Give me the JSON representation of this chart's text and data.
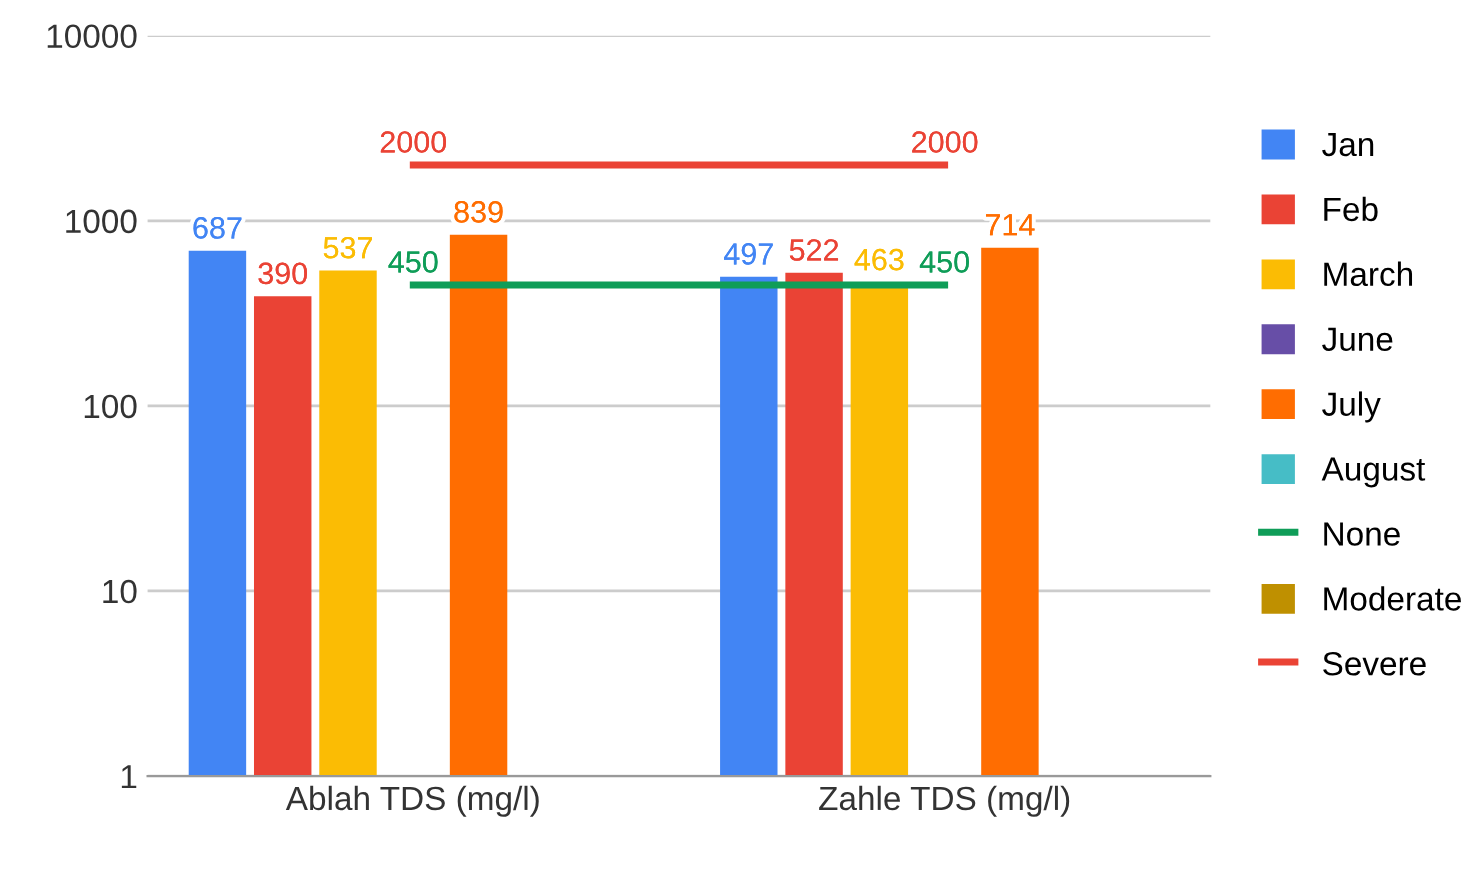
{
  "chart_data": {
    "type": "bar",
    "categories": [
      "Ablah TDS (mg/l)",
      "Zahle TDS (mg/l)"
    ],
    "series": [
      {
        "name": "Jan",
        "color": "#4285f4",
        "values": [
          687,
          497
        ]
      },
      {
        "name": "Feb",
        "color": "#ea4335",
        "values": [
          390,
          522
        ]
      },
      {
        "name": "March",
        "color": "#fbbc04",
        "values": [
          537,
          463
        ]
      },
      {
        "name": "June",
        "color": "#674ea7",
        "values": [
          null,
          null
        ]
      },
      {
        "name": "July",
        "color": "#ff6d01",
        "values": [
          839,
          714
        ]
      },
      {
        "name": "August",
        "color": "#46bdc6",
        "values": [
          null,
          null
        ]
      },
      {
        "name": "None",
        "type": "line",
        "color": "#0f9d58",
        "values": [
          450,
          450
        ]
      },
      {
        "name": "Moderate",
        "color": "#bf9000",
        "values": [
          null,
          null
        ]
      },
      {
        "name": "Severe",
        "type": "line",
        "color": "#ea4335",
        "values": [
          2000,
          2000
        ]
      }
    ],
    "log": true,
    "ylim": [
      1,
      10000
    ],
    "yticks": [
      1,
      10,
      100,
      1000,
      10000
    ],
    "grid": "y",
    "legend": "right",
    "data_labels": true
  }
}
